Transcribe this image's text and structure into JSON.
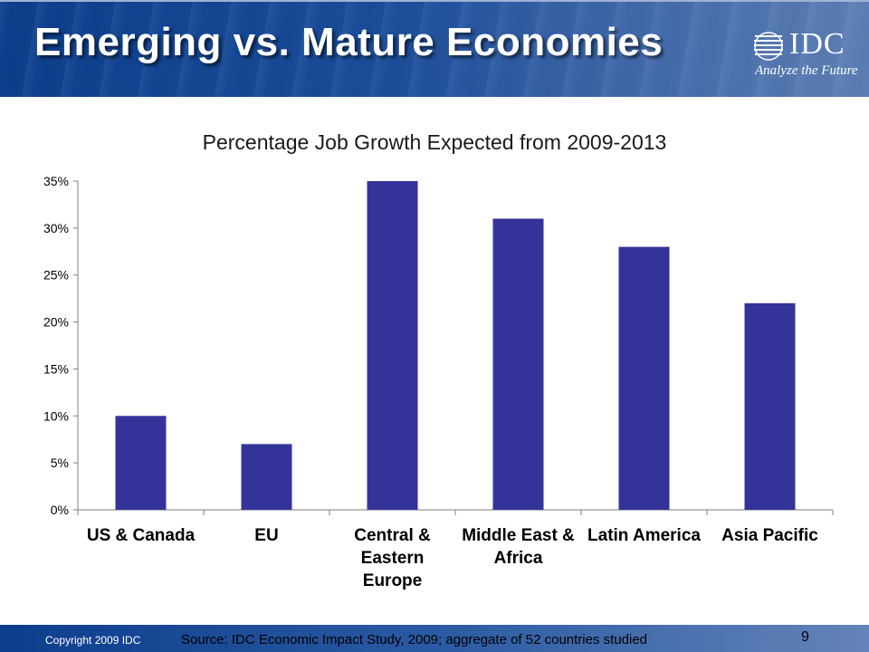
{
  "slide": {
    "title": "Emerging vs. Mature Economies",
    "logo_text": "IDC",
    "logo_tagline": "Analyze the Future",
    "copyright": "Copyright 2009 IDC",
    "source": "Source:  IDC Economic Impact Study, 2009; aggregate of 52 countries studied",
    "page_number": "9"
  },
  "colors": {
    "bar": "#333399",
    "header_blue": "#1b4d9a",
    "axis": "#7f7f7f"
  },
  "chart_data": {
    "type": "bar",
    "title": "Percentage Job Growth Expected from 2009-2013",
    "categories": [
      [
        "US & Canada"
      ],
      [
        "EU"
      ],
      [
        "Central &",
        "Eastern",
        "Europe"
      ],
      [
        "Middle East &",
        "Africa"
      ],
      [
        "Latin America"
      ],
      [
        "Asia Pacific"
      ]
    ],
    "values": [
      10,
      7,
      35,
      31,
      28,
      22
    ],
    "yticks": [
      "0%",
      "5%",
      "10%",
      "15%",
      "20%",
      "25%",
      "30%",
      "35%"
    ],
    "ylim": [
      0,
      35
    ],
    "ystep": 5,
    "grid": false,
    "legend": "none"
  }
}
